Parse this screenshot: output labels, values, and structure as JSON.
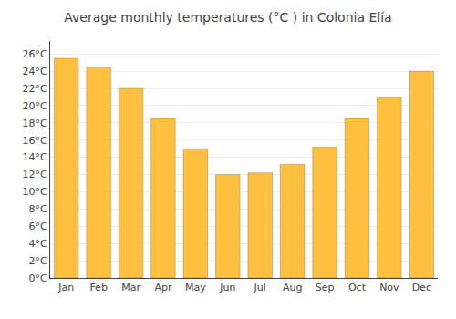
{
  "chart_data": {
    "type": "bar",
    "title": "Average monthly temperatures (°C ) in Colonia Elía",
    "categories": [
      "Jan",
      "Feb",
      "Mar",
      "Apr",
      "May",
      "Jun",
      "Jul",
      "Aug",
      "Sep",
      "Oct",
      "Nov",
      "Dec"
    ],
    "values": [
      25.5,
      24.5,
      22.0,
      18.5,
      15.0,
      12.0,
      12.2,
      13.2,
      15.2,
      18.5,
      21.0,
      24.0
    ],
    "color": "#FFC040",
    "ylim": [
      0,
      27.5
    ],
    "yticks": [
      {
        "value": 0,
        "label": "0°C"
      },
      {
        "value": 2,
        "label": "2°C"
      },
      {
        "value": 4,
        "label": "4°C"
      },
      {
        "value": 6,
        "label": "6°C"
      },
      {
        "value": 8,
        "label": "8°C"
      },
      {
        "value": 10,
        "label": "10°C"
      },
      {
        "value": 12,
        "label": "12°C"
      },
      {
        "value": 14,
        "label": "14°C"
      },
      {
        "value": 16,
        "label": "16°C"
      },
      {
        "value": 18,
        "label": "18°C"
      },
      {
        "value": 20,
        "label": "20°C"
      },
      {
        "value": 22,
        "label": "22°C"
      },
      {
        "value": 24,
        "label": "24°C"
      },
      {
        "value": 26,
        "label": "26°C"
      }
    ],
    "grid": true
  }
}
